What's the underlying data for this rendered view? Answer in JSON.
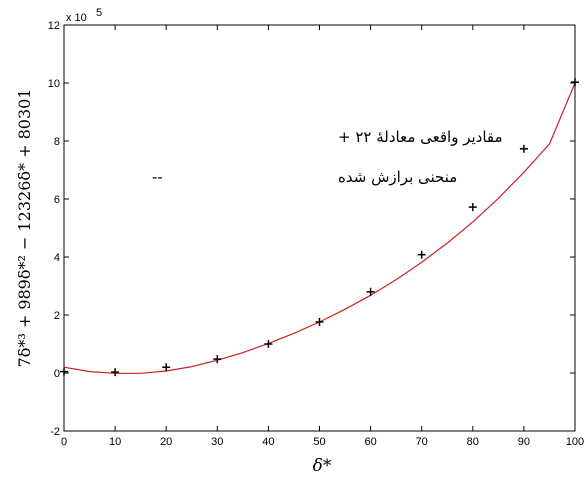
{
  "chart_data": {
    "type": "scatter",
    "xlabel": "δ*",
    "ylabel": "7δ*³ + 989δ*² − 12326δ* + 80301",
    "y_multiplier_label": "x 10",
    "y_multiplier_exponent": "5",
    "xlim": [
      0,
      100
    ],
    "ylim": [
      -2,
      12
    ],
    "x_ticks": [
      "0",
      "10",
      "20",
      "30",
      "40",
      "50",
      "60",
      "70",
      "80",
      "90",
      "100"
    ],
    "y_ticks": [
      "-2",
      "0",
      "2",
      "4",
      "6",
      "8",
      "10",
      "12"
    ],
    "grid": false,
    "legend_placement": "top-left",
    "series": [
      {
        "name": "مقادیر واقعی معادلهٔ ۲۲ +",
        "kind": "markers",
        "marker": "+",
        "color": "#000000",
        "x": [
          0,
          10,
          20,
          30,
          40,
          50,
          60,
          70,
          80,
          90,
          100
        ],
        "y": [
          0.05,
          0.03,
          0.2,
          0.48,
          1.0,
          1.76,
          2.8,
          4.08,
          5.72,
          7.73,
          10.03
        ]
      },
      {
        "name": "منحنی برازش شده",
        "legend_marker": "--",
        "kind": "line",
        "color": "#cc2222",
        "x": [
          0,
          5,
          10,
          15,
          20,
          25,
          30,
          35,
          40,
          45,
          50,
          55,
          60,
          65,
          70,
          75,
          80,
          85,
          90,
          95,
          100
        ],
        "y": [
          0.2,
          0.05,
          -0.01,
          -0.01,
          0.07,
          0.22,
          0.44,
          0.7,
          1.02,
          1.37,
          1.76,
          2.2,
          2.68,
          3.22,
          3.82,
          4.48,
          5.21,
          6.02,
          6.92,
          7.9,
          10.0
        ]
      }
    ]
  }
}
